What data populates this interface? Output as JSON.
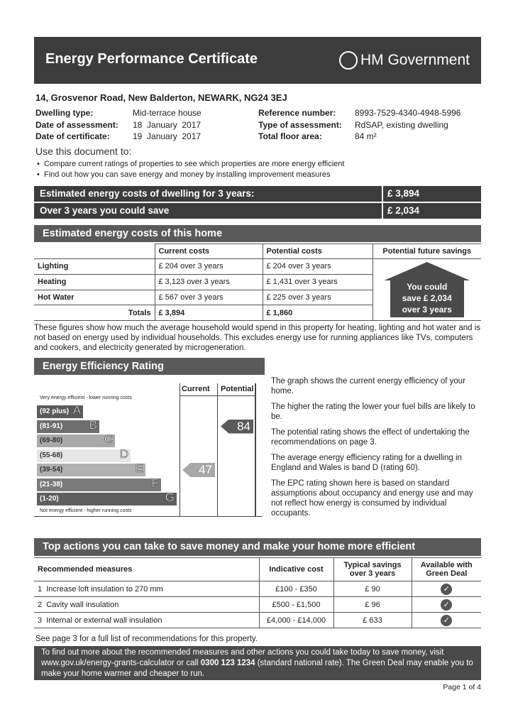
{
  "header": {
    "title": "Energy Performance Certificate",
    "government": "HM Government"
  },
  "address": "14, Grosvenor Road, New Balderton, NEWARK, NG24 3EJ",
  "details": {
    "left": [
      {
        "label": "Dwelling type:",
        "value": "Mid-terrace house"
      },
      {
        "label": "Date of assessment:",
        "value": "18  January  2017"
      },
      {
        "label": "Date of certificate:",
        "value": "19  January  2017"
      }
    ],
    "right": [
      {
        "label": "Reference number:",
        "value": "8993-7529-4340-4948-5996"
      },
      {
        "label": "Type of assessment:",
        "value": "RdSAP, existing dwelling"
      },
      {
        "label": "Total floor area:",
        "value": "84 m²"
      }
    ]
  },
  "use": {
    "title": "Use this document to:",
    "bullets": [
      "Compare current ratings of properties to see which properties are more energy efficient",
      "Find out how you can save energy and money by installing improvement measures"
    ]
  },
  "summary": [
    {
      "label": "Estimated energy costs of dwelling for 3 years:",
      "value": "£ 3,894"
    },
    {
      "label": "Over 3 years you could save",
      "value": "£ 2,034"
    }
  ],
  "costs": {
    "title": "Estimated energy costs of this home",
    "headers": [
      "",
      "Current costs",
      "Potential costs",
      "Potential future savings"
    ],
    "rows": [
      {
        "label": "Lighting",
        "current": "£ 204 over 3 years",
        "potential": "£ 204 over 3 years"
      },
      {
        "label": "Heating",
        "current": "£ 3,123 over 3 years",
        "potential": "£ 1,431 over 3 years"
      },
      {
        "label": "Hot Water",
        "current": "£ 567 over 3 years",
        "potential": "£ 225 over 3 years"
      }
    ],
    "totals": {
      "label": "Totals",
      "current": "£ 3,894",
      "potential": "£ 1,860"
    },
    "savings": [
      "You could",
      "save £ 2,034",
      "over 3 years"
    ],
    "note": "These figures show how much the average household would spend in this property for heating, lighting and hot water and is not based on energy used by individual households. This excludes energy use for running appliances like TVs, computers and cookers, and electricity generated by microgeneration."
  },
  "rating": {
    "title": "Energy Efficiency Rating",
    "col_current": "Current",
    "col_potential": "Potential",
    "top_note": "Very energy efficient - lower running costs",
    "bottom_note": "Not energy efficient - higher running costs",
    "bands": [
      {
        "range": "(92 plus)",
        "letter": "A",
        "color": "#5a5a5a"
      },
      {
        "range": "(81-91)",
        "letter": "B",
        "color": "#6e6e6e"
      },
      {
        "range": "(69-80)",
        "letter": "C",
        "color": "#a8a8a8"
      },
      {
        "range": "(55-68)",
        "letter": "D",
        "color": "#e6e6e6"
      },
      {
        "range": "(39-54)",
        "letter": "E",
        "color": "#b0b0b0"
      },
      {
        "range": "(21-38)",
        "letter": "F",
        "color": "#7a7a7a"
      },
      {
        "range": "(1-20)",
        "letter": "G",
        "color": "#5e5e5e"
      }
    ],
    "current": 47,
    "potential": 84,
    "text": [
      "The graph shows the current energy efficiency of your home.",
      "The higher the rating the lower your fuel bills are likely to be.",
      "The potential rating shows the effect of undertaking the recommendations on page 3.",
      "The average energy efficiency rating for a dwelling in England and Wales is band D (rating 60).",
      "The EPC rating shown here is based on standard assumptions about occupancy and energy use and may not reflect how energy is consumed by individual occupants."
    ]
  },
  "actions": {
    "title": "Top actions you can take to save money and make your home more efficient",
    "headers": [
      "Recommended measures",
      "Indicative cost",
      "Typical savings over 3 years",
      "Available with Green Deal"
    ],
    "rows": [
      {
        "n": "1",
        "measure": "Increase loft insulation to 270 mm",
        "cost": "£100 - £350",
        "saving": "£ 90",
        "green": true
      },
      {
        "n": "2",
        "measure": "Cavity wall insulation",
        "cost": "£500 - £1,500",
        "saving": "£ 96",
        "green": true
      },
      {
        "n": "3",
        "measure": "Internal or external wall insulation",
        "cost": "£4,000 - £14,000",
        "saving": "£ 633",
        "green": true
      }
    ],
    "see_more": "See page 3 for a full list of recommendations for this property."
  },
  "footer": {
    "text1": "To find out more about the recommended measures and other actions you could take today to save money, visit www.gov.uk/energy-grants-calculator or call ",
    "phone": "0300 123 1234",
    "text2": " (standard national rate). The Green Deal may enable you to make your home warmer and cheaper to run.",
    "page": "Page 1 of 4"
  }
}
